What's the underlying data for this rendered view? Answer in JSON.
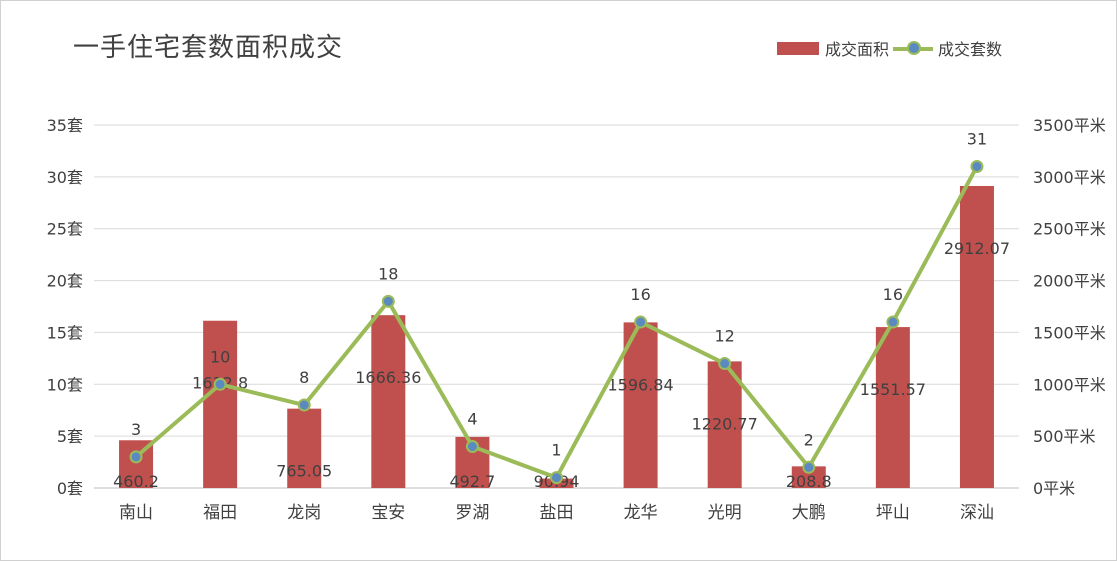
{
  "title": "一手住宅套数面积成交",
  "legend": {
    "bar_label": "成交面积",
    "line_label": "成交套数"
  },
  "colors": {
    "bar": "#c0504d",
    "line": "#9bbb59",
    "marker": "#5b8ac0",
    "grid": "#d9d9d9",
    "text": "#404040"
  },
  "chart_data": {
    "type": "bar",
    "categories": [
      "南山",
      "福田",
      "龙岗",
      "宝安",
      "罗湖",
      "盐田",
      "龙华",
      "光明",
      "大鹏",
      "坪山",
      "深汕"
    ],
    "series": [
      {
        "name": "成交面积",
        "type": "bar",
        "axis": "right",
        "values": [
          460.2,
          1612.8,
          765.05,
          1666.36,
          492.7,
          90.94,
          1596.84,
          1220.77,
          208.8,
          1551.57,
          2912.07
        ]
      },
      {
        "name": "成交套数",
        "type": "line",
        "axis": "left",
        "values": [
          3,
          10,
          8,
          18,
          4,
          1,
          16,
          12,
          2,
          16,
          31
        ]
      }
    ],
    "bar_labels": [
      "460.2",
      "1612.8",
      "765.05",
      "1666.36",
      "492.7",
      "90.94",
      "1596.84",
      "1220.77",
      "208.8",
      "1551.57",
      "2912.07"
    ],
    "line_labels": [
      "3",
      "10",
      "8",
      "18",
      "4",
      "1",
      "16",
      "12",
      "2",
      "16",
      "31"
    ],
    "y_left": {
      "min": 0,
      "max": 35,
      "step": 5,
      "ticks": [
        "0套",
        "5套",
        "10套",
        "15套",
        "20套",
        "25套",
        "30套",
        "35套"
      ]
    },
    "y_right": {
      "min": 0,
      "max": 3500,
      "step": 500,
      "ticks": [
        "0平米",
        "500平米",
        "1000平米",
        "1500平米",
        "2000平米",
        "2500平米",
        "3000平米",
        "3500平米"
      ]
    },
    "grid": true,
    "legend_position": "top-right"
  }
}
